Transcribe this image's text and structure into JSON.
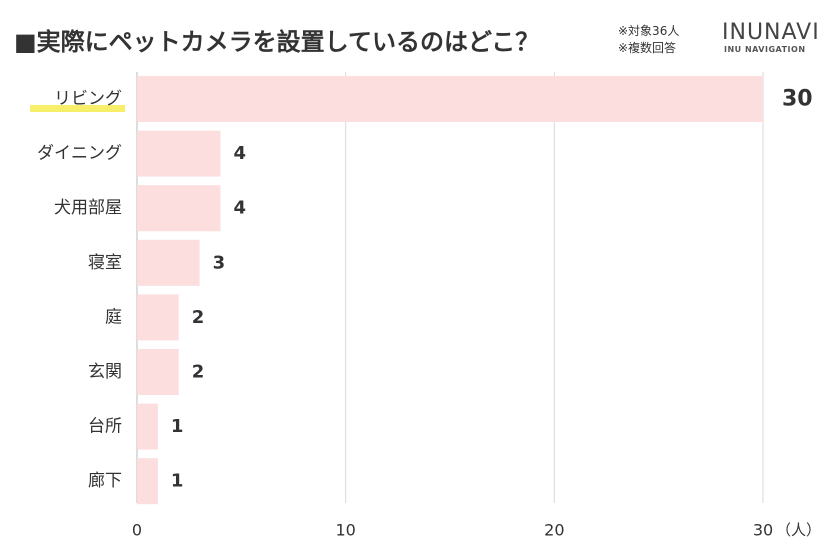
{
  "header": {
    "title": "■実際にペットカメラを設置しているのはどこ？",
    "note_line1": "※対象36人",
    "note_line2": "※複数回答",
    "brand": "INUNAVI",
    "brand_sub": "INU NAVIGATION"
  },
  "colors": {
    "bar": "#fcdedf",
    "grid": "#d9d9d9",
    "text": "#333333",
    "highlight": "#f7ef6a"
  },
  "chart_data": {
    "type": "bar",
    "orientation": "horizontal",
    "categories": [
      "リビング",
      "ダイニング",
      "犬用部屋",
      "寝室",
      "庭",
      "玄関",
      "台所",
      "廊下"
    ],
    "values": [
      30,
      4,
      4,
      3,
      2,
      2,
      1,
      1
    ],
    "xlim": [
      0,
      30
    ],
    "xticks": [
      0,
      10,
      20,
      30
    ],
    "unit_label": "（人）",
    "grid": true,
    "highlighted_category": "リビング"
  }
}
